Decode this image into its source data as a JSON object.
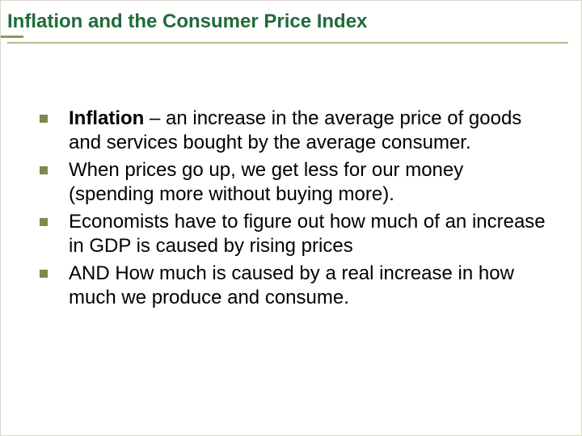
{
  "slide": {
    "title": "Inflation and the Consumer Price Index",
    "title_color": "#1f6b3a",
    "title_fontsize": 24,
    "underline_color": "#b9b98f",
    "accent_color": "#8a9a5b",
    "background_color": "#ffffff",
    "bullet_marker_color": "#7a8a4a",
    "bullet_marker_size": 10,
    "body_fontsize": 24,
    "body_color": "#000000",
    "bullets": [
      {
        "lead": "Inflation",
        "rest": " – an increase in the average price of goods and services bought by the average consumer."
      },
      {
        "lead": "",
        "rest": "When prices go up, we get less for our money (spending more without buying more)."
      },
      {
        "lead": "",
        "rest": "Economists have to figure out how much of an increase in GDP is caused by rising prices"
      },
      {
        "lead": "",
        "rest": "AND How much is caused by a real increase in how much we produce and consume."
      }
    ]
  }
}
